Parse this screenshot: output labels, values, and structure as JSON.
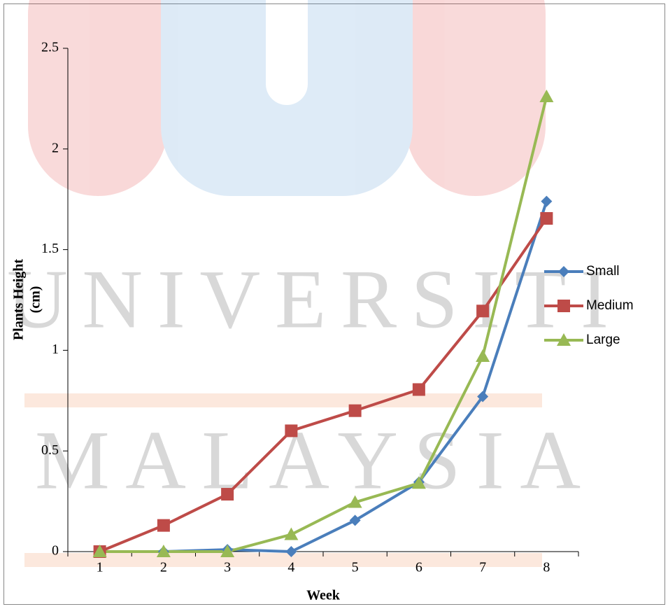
{
  "chart_data": {
    "type": "line",
    "xlabel": "Week",
    "ylabel": [
      "Plants Height",
      "(cm)"
    ],
    "categories": [
      "1",
      "2",
      "3",
      "4",
      "5",
      "6",
      "7",
      "8"
    ],
    "series": [
      {
        "name": "Small",
        "color": "#4a7ebb",
        "marker": "diamond",
        "values": [
          0,
          0,
          0.01,
          0,
          0.155,
          0.345,
          0.77,
          1.74
        ]
      },
      {
        "name": "Medium",
        "color": "#be4b48",
        "marker": "square",
        "values": [
          0,
          0.13,
          0.285,
          0.6,
          0.7,
          0.805,
          1.195,
          1.655
        ]
      },
      {
        "name": "Large",
        "color": "#98b954",
        "marker": "triangle",
        "values": [
          0,
          0,
          0,
          0.085,
          0.245,
          0.34,
          0.97,
          2.26
        ]
      }
    ],
    "ylim": [
      0,
      2.5
    ],
    "yticks": [
      0,
      0.5,
      1,
      1.5,
      2,
      2.5
    ],
    "grid": false,
    "legend": "right"
  },
  "watermark": {
    "lines": [
      "UNIVERSITI",
      "MALAYSIA"
    ]
  }
}
